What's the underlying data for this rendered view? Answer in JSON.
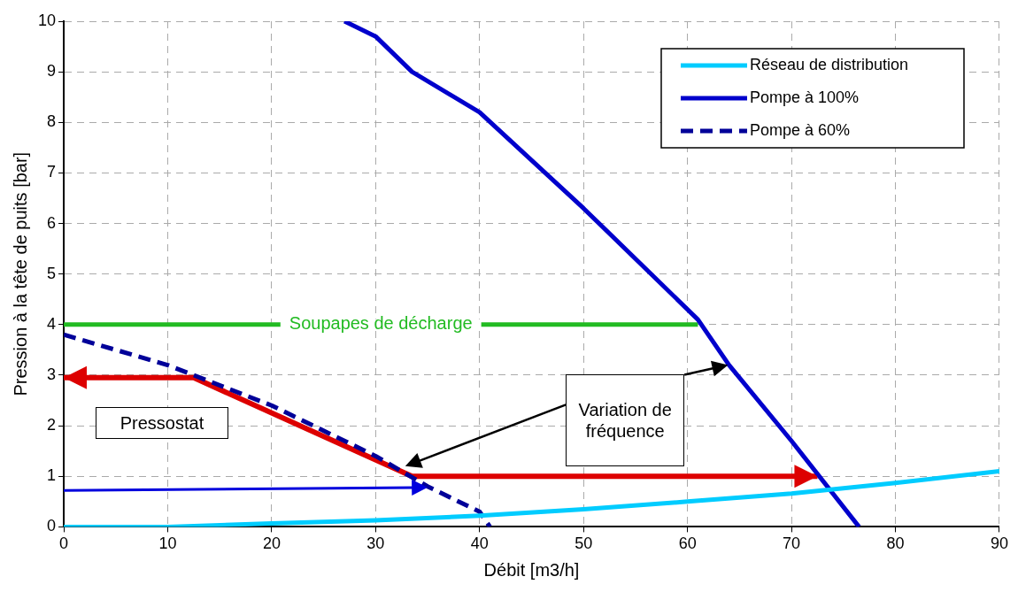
{
  "chart_data": {
    "type": "line",
    "xlabel": "Débit [m3/h]",
    "ylabel": "Pression à la tête de puits [bar]",
    "xlim": [
      0,
      90
    ],
    "ylim": [
      0,
      10
    ],
    "xticks": [
      0,
      10,
      20,
      30,
      40,
      50,
      60,
      70,
      80,
      90
    ],
    "yticks": [
      0,
      1,
      2,
      3,
      4,
      5,
      6,
      7,
      8,
      9,
      10
    ],
    "grid": true,
    "legend": "top right",
    "marker": "none",
    "series": [
      {
        "name": "Réseau de distribution",
        "color": "#00ccff",
        "x": [
          0,
          10,
          20,
          30,
          40,
          50,
          60,
          70,
          80,
          90
        ],
        "values": [
          0,
          0,
          0.07,
          0.13,
          0.22,
          0.35,
          0.5,
          0.66,
          0.87,
          1.1
        ]
      },
      {
        "name": "Pompe à 100%",
        "color": "#0000cc",
        "x": [
          27,
          30,
          33.5,
          40,
          50,
          61,
          64,
          70,
          76.5
        ],
        "values": [
          10,
          9.7,
          9,
          8.2,
          6.3,
          4.1,
          3.2,
          1.7,
          0
        ]
      },
      {
        "name": "Pompe à 60%",
        "color": "#000099",
        "line_style": "dashed",
        "x": [
          0,
          10,
          20,
          30,
          35,
          40,
          41
        ],
        "values": [
          3.8,
          3.2,
          2.4,
          1.4,
          0.8,
          0.3,
          0
        ]
      },
      {
        "color": "#dd0000",
        "x": [
          0,
          12.5,
          33.5,
          72.5
        ],
        "values": [
          2.95,
          2.95,
          1,
          1
        ]
      },
      {
        "name": "Soupapes de décharge",
        "color": "#22bb22",
        "x": [
          0,
          61
        ],
        "values": [
          4,
          4
        ]
      }
    ],
    "annotations": [
      "Pressostat",
      "Variation de fréquence"
    ]
  }
}
